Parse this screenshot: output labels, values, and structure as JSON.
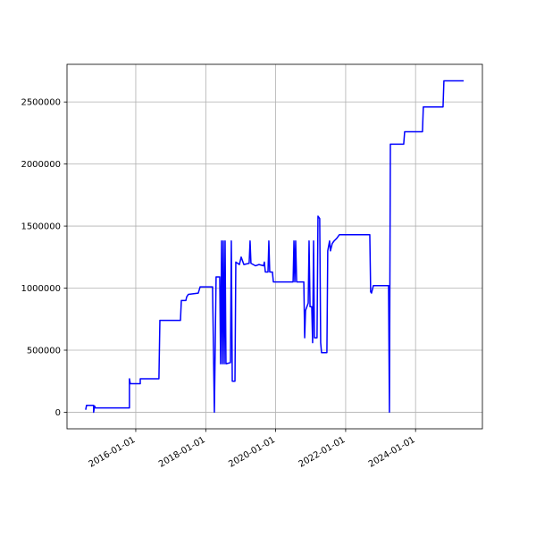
{
  "chart_data": {
    "type": "line",
    "color": "#0000ff",
    "grid": true,
    "x": [
      "2014-07-27",
      "2014-08-05",
      "2014-10-18",
      "2014-10-18",
      "2014-10-28",
      "2014-11-06",
      "2015-10-27",
      "2015-10-27",
      "2015-11-05",
      "2016-02-17",
      "2016-02-17",
      "2016-08-30",
      "2016-09-09",
      "2017-04-12",
      "2017-04-21",
      "2017-06-07",
      "2017-06-16",
      "2017-07-04",
      "2017-10-15",
      "2017-11-03",
      "2018-03-13",
      "2018-04-01",
      "2018-04-19",
      "2018-05-27",
      "2018-06-05",
      "2018-06-15",
      "2018-06-24",
      "2018-07-03",
      "2018-07-13",
      "2018-07-22",
      "2018-07-31",
      "2018-09-16",
      "2018-09-25",
      "2018-10-05",
      "2018-11-02",
      "2018-11-11",
      "2018-12-18",
      "2019-01-06",
      "2019-02-03",
      "2019-03-30",
      "2019-04-09",
      "2019-04-18",
      "2019-06-04",
      "2019-07-11",
      "2019-08-27",
      "2019-09-05",
      "2019-09-15",
      "2019-10-13",
      "2019-10-22",
      "2019-10-31",
      "2019-11-28",
      "2019-12-08",
      "2020-07-01",
      "2020-07-10",
      "2020-07-19",
      "2020-07-28",
      "2020-08-07",
      "2020-10-21",
      "2020-10-30",
      "2020-11-08",
      "2020-12-06",
      "2020-12-15",
      "2020-12-25",
      "2021-01-12",
      "2021-01-21",
      "2021-01-31",
      "2021-02-09",
      "2021-03-08",
      "2021-03-18",
      "2021-04-05",
      "2021-04-15",
      "2021-04-24",
      "2021-06-19",
      "2021-06-28",
      "2021-07-17",
      "2021-07-26",
      "2021-08-14",
      "2021-09-02",
      "2021-09-29",
      "2021-10-27",
      "2022-09-10",
      "2022-09-19",
      "2022-09-28",
      "2022-10-17",
      "2023-03-25",
      "2023-04-03",
      "2023-04-13",
      "2023-08-30",
      "2023-09-09",
      "2024-03-13",
      "2024-03-22",
      "2024-10-14",
      "2024-10-23",
      "2025-05-17"
    ],
    "values": [
      20000,
      55000,
      55000,
      0,
      50000,
      35000,
      35000,
      270000,
      230000,
      230000,
      270000,
      270000,
      740000,
      740000,
      900000,
      900000,
      930000,
      950000,
      960000,
      1010000,
      1010000,
      0,
      1090000,
      1090000,
      390000,
      1380000,
      390000,
      1380000,
      390000,
      1380000,
      390000,
      400000,
      1380000,
      250000,
      250000,
      1210000,
      1190000,
      1250000,
      1190000,
      1200000,
      1380000,
      1200000,
      1180000,
      1190000,
      1180000,
      1210000,
      1130000,
      1130000,
      1380000,
      1130000,
      1130000,
      1050000,
      1050000,
      1380000,
      1050000,
      1380000,
      1050000,
      1050000,
      600000,
      820000,
      880000,
      1380000,
      850000,
      850000,
      560000,
      1380000,
      600000,
      600000,
      1580000,
      1560000,
      560000,
      480000,
      480000,
      1300000,
      1380000,
      1300000,
      1360000,
      1380000,
      1400000,
      1430000,
      1430000,
      970000,
      960000,
      1020000,
      1020000,
      0,
      2160000,
      2160000,
      2260000,
      2260000,
      2460000,
      2460000,
      2670000,
      2670000
    ],
    "xlim": [
      "2014-01-13",
      "2025-11-29"
    ],
    "xticks": [
      "2016-01-01",
      "2018-01-01",
      "2020-01-01",
      "2022-01-01",
      "2024-01-01"
    ],
    "ylim": [
      -133500,
      2803500
    ],
    "yticks": [
      0,
      500000,
      1000000,
      1500000,
      2000000,
      2500000
    ]
  }
}
